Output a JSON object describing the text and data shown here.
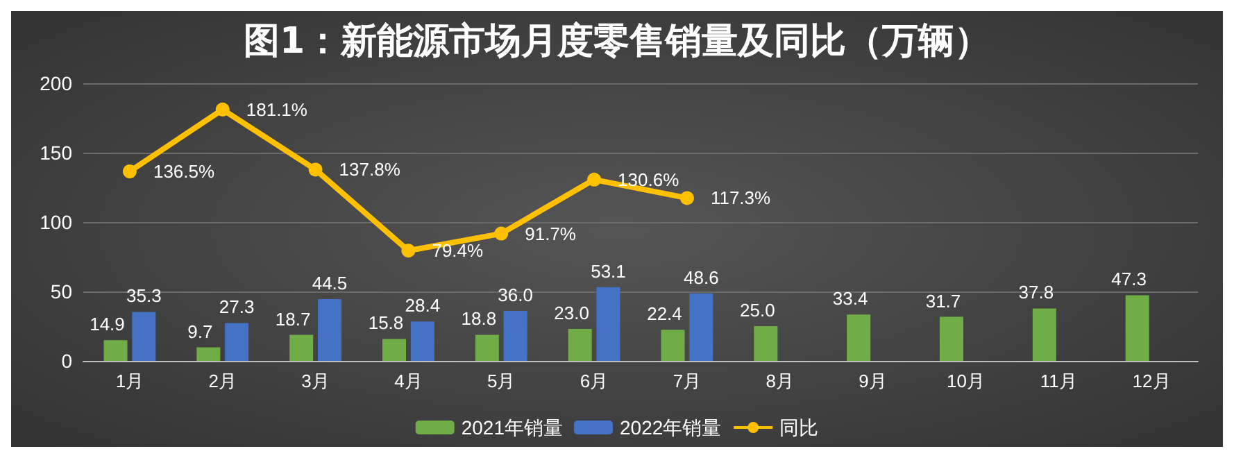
{
  "chart_data": {
    "type": "bar",
    "title": "图1：新能源市场月度零售销量及同比（万辆）",
    "categories": [
      "1月",
      "2月",
      "3月",
      "4月",
      "5月",
      "6月",
      "7月",
      "8月",
      "9月",
      "10月",
      "11月",
      "12月"
    ],
    "series": [
      {
        "name": "2021年销量",
        "color": "#70ad47",
        "values": [
          14.9,
          9.7,
          18.7,
          15.8,
          18.8,
          23.0,
          22.4,
          25.0,
          33.4,
          31.7,
          37.8,
          47.3
        ],
        "value_labels": [
          "14.9",
          "9.7",
          "18.7",
          "15.8",
          "18.8",
          "23.0",
          "22.4",
          "25.0",
          "33.4",
          "31.7",
          "37.8",
          "47.3"
        ]
      },
      {
        "name": "2022年销量",
        "color": "#4472c4",
        "values": [
          35.3,
          27.3,
          44.5,
          28.4,
          36.0,
          53.1,
          48.6,
          null,
          null,
          null,
          null,
          null
        ],
        "value_labels": [
          "35.3",
          "27.3",
          "44.5",
          "28.4",
          "36.0",
          "53.1",
          "48.6",
          null,
          null,
          null,
          null,
          null
        ]
      },
      {
        "name": "同比",
        "type": "line",
        "color": "#ffc000",
        "marker": "circle",
        "values": [
          136.5,
          181.1,
          137.8,
          79.4,
          91.7,
          130.6,
          117.3,
          null,
          null,
          null,
          null,
          null
        ],
        "value_labels": [
          "136.5%",
          "181.1%",
          "137.8%",
          "79.4%",
          "91.7%",
          "130.6%",
          "117.3%",
          null,
          null,
          null,
          null,
          null
        ]
      }
    ],
    "ylim": [
      0,
      200
    ],
    "yticks": [
      0,
      50,
      100,
      150,
      200
    ],
    "grid": "y",
    "legend": "bottom"
  }
}
